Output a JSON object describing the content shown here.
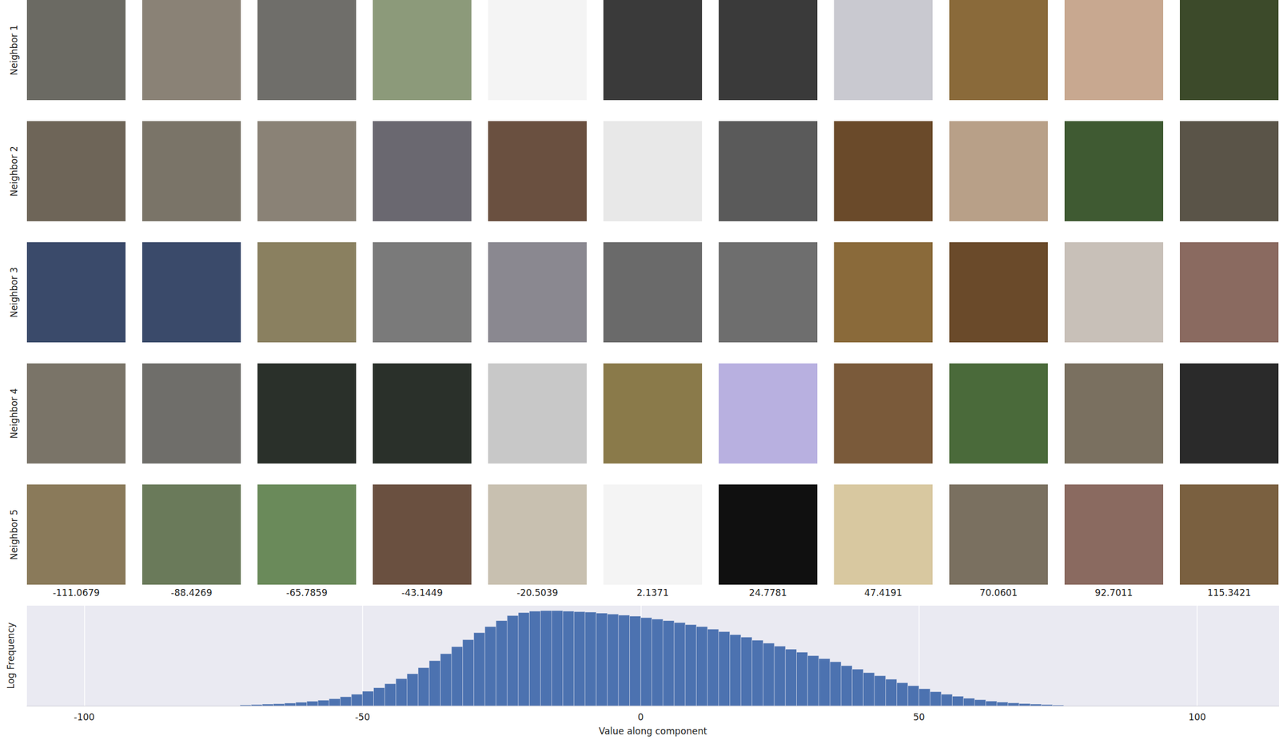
{
  "chart_data": {
    "type": "histogram",
    "bins": [
      -72,
      -70,
      -68,
      -66,
      -64,
      -62,
      -60,
      -58,
      -56,
      -54,
      -52,
      -50,
      -48,
      -46,
      -44,
      -42,
      -40,
      -38,
      -36,
      -34,
      -32,
      -30,
      -28,
      -26,
      -24,
      -22,
      -20,
      -18,
      -16,
      -14,
      -12,
      -10,
      -8,
      -6,
      -4,
      -2,
      0,
      2,
      4,
      6,
      8,
      10,
      12,
      14,
      16,
      18,
      20,
      22,
      24,
      26,
      28,
      30,
      32,
      34,
      36,
      38,
      40,
      42,
      44,
      46,
      48,
      50,
      52,
      54,
      56,
      58,
      60,
      62,
      64,
      66,
      68,
      70,
      72,
      74,
      76
    ],
    "counts": [
      0.05,
      0.07,
      0.1,
      0.12,
      0.16,
      0.21,
      0.27,
      0.33,
      0.42,
      0.54,
      0.69,
      0.87,
      1.08,
      1.32,
      1.62,
      1.92,
      2.28,
      2.7,
      3.12,
      3.54,
      3.96,
      4.38,
      4.74,
      5.1,
      5.4,
      5.58,
      5.67,
      5.7,
      5.7,
      5.67,
      5.64,
      5.61,
      5.55,
      5.49,
      5.43,
      5.37,
      5.28,
      5.19,
      5.1,
      4.98,
      4.86,
      4.74,
      4.59,
      4.44,
      4.26,
      4.11,
      3.93,
      3.75,
      3.57,
      3.39,
      3.21,
      3.0,
      2.82,
      2.64,
      2.4,
      2.19,
      1.98,
      1.8,
      1.59,
      1.38,
      1.2,
      1.02,
      0.84,
      0.69,
      0.57,
      0.45,
      0.36,
      0.28,
      0.22,
      0.17,
      0.13,
      0.1,
      0.07,
      0.04
    ],
    "color": "#4c72b0",
    "xlim": [
      -110.3,
      114.7
    ],
    "xticks": [
      -100,
      -50,
      0,
      50,
      100
    ],
    "ylim": [
      0,
      6
    ],
    "x_label": "Value along component",
    "y_label": "Log Frequency",
    "grid": true,
    "tick_labels": "x"
  },
  "neighbor_grid": {
    "row_labels": [
      "Neighbor 1",
      "Neighbor 2",
      "Neighbor 3",
      "Neighbor 4",
      "Neighbor 5"
    ],
    "column_values": [
      -111.0679,
      -88.4269,
      -65.7859,
      -43.1449,
      -20.5039,
      2.1371,
      24.7781,
      47.4191,
      70.0601,
      92.7011,
      115.3421
    ]
  }
}
